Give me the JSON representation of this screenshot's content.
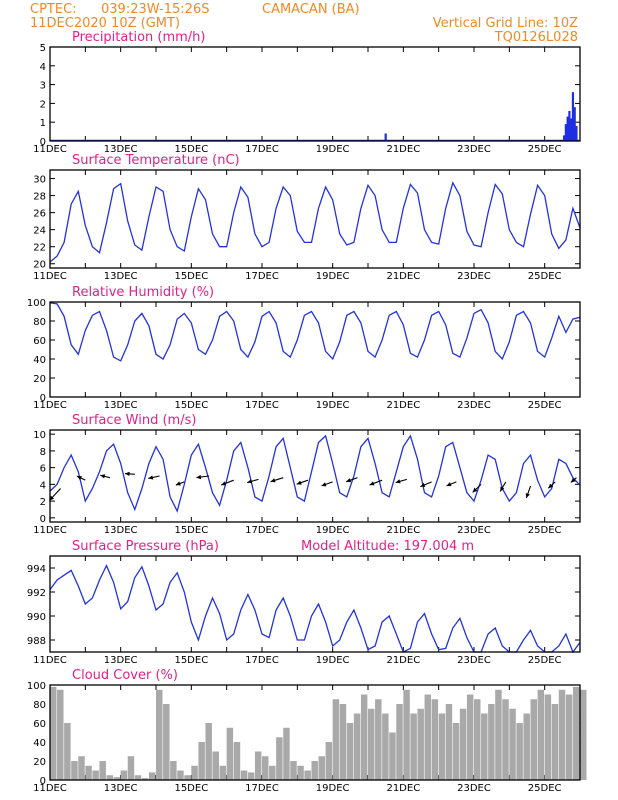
{
  "header": {
    "source": "CPTEC:",
    "coords": "039:23W-15:26S",
    "location": "CAMACAN (BA)",
    "init_time": "11DEC2020 10Z (GMT)",
    "grid_note": "Vertical Grid Line: 10Z",
    "code": "TQ0126L028",
    "model_altitude": "Model Altitude: 197.004 m"
  },
  "colors": {
    "header": "#f08a24",
    "panel_title": "#e0218a",
    "line": "#2233dd",
    "precip_bar": "#1f2fe0",
    "cloud_bar": "#a9a9a9"
  },
  "x_axis": {
    "start_day": 11,
    "end_day": 26,
    "labels": [
      "11DEC",
      "13DEC",
      "15DEC",
      "17DEC",
      "19DEC",
      "21DEC",
      "23DEC",
      "25DEC"
    ],
    "label_days": [
      11,
      13,
      15,
      17,
      19,
      21,
      23,
      25
    ]
  },
  "chart_data": [
    {
      "id": "precip",
      "type": "bar",
      "title": "Precipitation  (mm/h)",
      "ylim": [
        0,
        5
      ],
      "yticks": [
        0,
        1,
        2,
        3,
        4,
        5
      ],
      "x": [
        18.5,
        20.3,
        20.5,
        21.1,
        22.4,
        25.55,
        25.6,
        25.65,
        25.7,
        25.75,
        25.8,
        25.85,
        25.9
      ],
      "values": [
        0.05,
        0.03,
        0.4,
        0.05,
        0.02,
        0.3,
        0.9,
        1.3,
        1.6,
        1.2,
        2.6,
        1.8,
        0.8
      ]
    },
    {
      "id": "temp",
      "type": "line",
      "title": "Surface Temperature  (nC)",
      "ylim": [
        19.5,
        31
      ],
      "yticks": [
        20,
        22,
        24,
        26,
        28,
        30
      ],
      "x": [
        11.0,
        11.2,
        11.4,
        11.6,
        11.8,
        12.0,
        12.2,
        12.4,
        12.6,
        12.8,
        13.0,
        13.2,
        13.4,
        13.6,
        13.8,
        14.0,
        14.2,
        14.4,
        14.6,
        14.8,
        15.0,
        15.2,
        15.4,
        15.6,
        15.8,
        16.0,
        16.2,
        16.4,
        16.6,
        16.8,
        17.0,
        17.2,
        17.4,
        17.6,
        17.8,
        18.0,
        18.2,
        18.4,
        18.6,
        18.8,
        19.0,
        19.2,
        19.4,
        19.6,
        19.8,
        20.0,
        20.2,
        20.4,
        20.6,
        20.8,
        21.0,
        21.2,
        21.4,
        21.6,
        21.8,
        22.0,
        22.2,
        22.4,
        22.6,
        22.8,
        23.0,
        23.2,
        23.4,
        23.6,
        23.8,
        24.0,
        24.2,
        24.4,
        24.6,
        24.8,
        25.0,
        25.2,
        25.4,
        25.6,
        25.8,
        26.0
      ],
      "values": [
        20.2,
        20.9,
        22.5,
        27.0,
        28.5,
        24.5,
        22.0,
        21.3,
        24.8,
        28.8,
        29.4,
        25.0,
        22.2,
        21.6,
        25.5,
        29.0,
        28.5,
        24.0,
        22.0,
        21.5,
        25.5,
        28.8,
        27.5,
        23.5,
        22.0,
        22.0,
        26.0,
        29.0,
        27.8,
        23.5,
        22.0,
        22.5,
        26.5,
        29.0,
        28.0,
        23.8,
        22.5,
        22.5,
        26.5,
        29.0,
        27.5,
        23.5,
        22.2,
        22.5,
        26.5,
        29.2,
        28.0,
        24.0,
        22.5,
        22.5,
        26.5,
        29.3,
        28.3,
        24.0,
        22.5,
        22.3,
        26.5,
        29.5,
        28.0,
        23.8,
        22.2,
        22.0,
        26.0,
        29.3,
        28.2,
        24.0,
        22.5,
        22.0,
        25.8,
        29.2,
        28.0,
        23.5,
        21.8,
        22.8,
        26.5,
        24.2
      ]
    },
    {
      "id": "rh",
      "type": "line",
      "title": "Relative Humidity  (%)",
      "ylim": [
        0,
        100
      ],
      "yticks": [
        0,
        20,
        40,
        60,
        80,
        100
      ],
      "x": [
        11.0,
        11.2,
        11.4,
        11.6,
        11.8,
        12.0,
        12.2,
        12.4,
        12.6,
        12.8,
        13.0,
        13.2,
        13.4,
        13.6,
        13.8,
        14.0,
        14.2,
        14.4,
        14.6,
        14.8,
        15.0,
        15.2,
        15.4,
        15.6,
        15.8,
        16.0,
        16.2,
        16.4,
        16.6,
        16.8,
        17.0,
        17.2,
        17.4,
        17.6,
        17.8,
        18.0,
        18.2,
        18.4,
        18.6,
        18.8,
        19.0,
        19.2,
        19.4,
        19.6,
        19.8,
        20.0,
        20.2,
        20.4,
        20.6,
        20.8,
        21.0,
        21.2,
        21.4,
        21.6,
        21.8,
        22.0,
        22.2,
        22.4,
        22.6,
        22.8,
        23.0,
        23.2,
        23.4,
        23.6,
        23.8,
        24.0,
        24.2,
        24.4,
        24.6,
        24.8,
        25.0,
        25.2,
        25.4,
        25.6,
        25.8,
        26.0
      ],
      "values": [
        99,
        98,
        85,
        55,
        45,
        70,
        86,
        90,
        70,
        42,
        38,
        55,
        80,
        88,
        75,
        45,
        40,
        55,
        82,
        88,
        78,
        50,
        45,
        60,
        85,
        90,
        80,
        50,
        42,
        58,
        85,
        90,
        78,
        48,
        42,
        60,
        86,
        90,
        78,
        48,
        40,
        58,
        86,
        90,
        78,
        48,
        42,
        60,
        86,
        90,
        76,
        46,
        42,
        60,
        86,
        90,
        76,
        46,
        42,
        62,
        88,
        92,
        78,
        48,
        40,
        58,
        86,
        90,
        78,
        48,
        42,
        62,
        85,
        68,
        82,
        84
      ]
    },
    {
      "id": "wind",
      "type": "line",
      "title": "Surface Wind  (m/s)",
      "ylim": [
        -0.5,
        10.5
      ],
      "yticks": [
        0,
        2,
        4,
        6,
        8,
        10
      ],
      "x": [
        11.0,
        11.2,
        11.4,
        11.6,
        11.8,
        12.0,
        12.2,
        12.4,
        12.6,
        12.8,
        13.0,
        13.2,
        13.4,
        13.6,
        13.8,
        14.0,
        14.2,
        14.4,
        14.6,
        14.8,
        15.0,
        15.2,
        15.4,
        15.6,
        15.8,
        16.0,
        16.2,
        16.4,
        16.6,
        16.8,
        17.0,
        17.2,
        17.4,
        17.6,
        17.8,
        18.0,
        18.2,
        18.4,
        18.6,
        18.8,
        19.0,
        19.2,
        19.4,
        19.6,
        19.8,
        20.0,
        20.2,
        20.4,
        20.6,
        20.8,
        21.0,
        21.2,
        21.4,
        21.6,
        21.8,
        22.0,
        22.2,
        22.4,
        22.6,
        22.8,
        23.0,
        23.2,
        23.4,
        23.6,
        23.8,
        24.0,
        24.2,
        24.4,
        24.6,
        24.8,
        25.0,
        25.2,
        25.4,
        25.6,
        25.8,
        26.0
      ],
      "values": [
        3.2,
        4.0,
        6.0,
        7.5,
        5.5,
        2.0,
        3.5,
        5.5,
        8.0,
        8.8,
        6.5,
        3.0,
        1.0,
        3.5,
        6.5,
        8.5,
        7.0,
        2.5,
        0.8,
        4.0,
        7.5,
        8.8,
        6.0,
        3.0,
        1.5,
        4.5,
        8.0,
        9.0,
        6.0,
        2.5,
        2.0,
        5.0,
        8.5,
        9.5,
        6.0,
        2.5,
        2.0,
        5.5,
        9.0,
        9.8,
        6.5,
        3.0,
        2.5,
        5.0,
        8.5,
        9.5,
        6.5,
        3.0,
        2.5,
        5.5,
        8.5,
        9.8,
        7.0,
        3.0,
        2.5,
        5.0,
        8.5,
        9.0,
        6.0,
        3.0,
        2.0,
        4.5,
        7.5,
        7.0,
        3.5,
        2.0,
        3.0,
        6.5,
        7.5,
        4.5,
        2.5,
        3.5,
        7.0,
        6.5,
        4.8,
        3.9
      ],
      "vectors": {
        "x": [
          11.3,
          12.0,
          12.7,
          13.4,
          14.1,
          14.8,
          15.5,
          16.2,
          16.9,
          17.6,
          18.3,
          19.0,
          19.7,
          20.4,
          21.1,
          21.8,
          22.5,
          23.2,
          23.9,
          24.6,
          25.3,
          25.9
        ],
        "y": [
          3.5,
          4.5,
          4.8,
          5.2,
          5.0,
          4.3,
          5.0,
          4.5,
          4.6,
          4.8,
          4.5,
          4.3,
          4.8,
          4.5,
          4.6,
          4.3,
          4.3,
          4.0,
          4.3,
          3.8,
          4.3,
          4.8
        ],
        "dx": [
          -0.4,
          -0.3,
          -0.35,
          -0.35,
          -0.4,
          -0.3,
          -0.45,
          -0.45,
          -0.4,
          -0.45,
          -0.4,
          -0.4,
          -0.4,
          -0.45,
          -0.4,
          -0.4,
          -0.35,
          -0.3,
          -0.2,
          -0.15,
          -0.25,
          -0.2
        ],
        "dy": [
          -1.5,
          0.5,
          0.3,
          0.1,
          -0.3,
          -0.4,
          -0.2,
          -0.6,
          -0.4,
          -0.5,
          -0.5,
          -0.5,
          -0.5,
          -0.6,
          -0.4,
          -0.6,
          -0.5,
          -1.0,
          -1.2,
          -1.5,
          -0.8,
          -0.6
        ]
      }
    },
    {
      "id": "pres",
      "type": "line",
      "title": "Surface Pressure  (hPa)",
      "ylim": [
        987,
        995
      ],
      "yticks": [
        988,
        990,
        992,
        994
      ],
      "x": [
        11.0,
        11.2,
        11.4,
        11.6,
        11.8,
        12.0,
        12.2,
        12.4,
        12.6,
        12.8,
        13.0,
        13.2,
        13.4,
        13.6,
        13.8,
        14.0,
        14.2,
        14.4,
        14.6,
        14.8,
        15.0,
        15.2,
        15.4,
        15.6,
        15.8,
        16.0,
        16.2,
        16.4,
        16.6,
        16.8,
        17.0,
        17.2,
        17.4,
        17.6,
        17.8,
        18.0,
        18.2,
        18.4,
        18.6,
        18.8,
        19.0,
        19.2,
        19.4,
        19.6,
        19.8,
        20.0,
        20.2,
        20.4,
        20.6,
        20.8,
        21.0,
        21.2,
        21.4,
        21.6,
        21.8,
        22.0,
        22.2,
        22.4,
        22.6,
        22.8,
        23.0,
        23.2,
        23.4,
        23.6,
        23.8,
        24.0,
        24.2,
        24.4,
        24.6,
        24.8,
        25.0,
        25.2,
        25.4,
        25.6,
        25.8,
        26.0
      ],
      "values": [
        992.2,
        993.0,
        993.4,
        993.8,
        992.5,
        991.0,
        991.5,
        993.0,
        994.2,
        992.8,
        990.6,
        991.2,
        993.2,
        994.1,
        992.5,
        990.5,
        991.0,
        992.8,
        993.6,
        992.0,
        989.5,
        988.0,
        990.0,
        991.5,
        990.2,
        988.0,
        988.5,
        990.5,
        991.8,
        990.5,
        988.5,
        988.2,
        990.5,
        991.5,
        990.0,
        988.0,
        988.0,
        990.0,
        991.0,
        989.5,
        987.5,
        988.0,
        989.5,
        990.5,
        989.0,
        987.2,
        987.5,
        989.5,
        990.0,
        988.5,
        987.0,
        987.3,
        989.5,
        990.2,
        988.5,
        987.2,
        987.3,
        989.0,
        989.8,
        988.2,
        987.0,
        987.0,
        988.5,
        989.0,
        987.5,
        987.0,
        987.0,
        988.0,
        988.8,
        987.5,
        987.0,
        987.0,
        987.5,
        988.5,
        987.0,
        987.8
      ]
    },
    {
      "id": "cloud",
      "type": "area",
      "title": "Cloud Cover  (%)",
      "ylim": [
        0,
        100
      ],
      "yticks": [
        0,
        20,
        40,
        60,
        80,
        100
      ],
      "x": [
        11.0,
        11.2,
        11.4,
        11.6,
        11.8,
        12.0,
        12.2,
        12.4,
        12.6,
        12.8,
        13.0,
        13.2,
        13.4,
        13.6,
        13.8,
        14.0,
        14.2,
        14.4,
        14.6,
        14.8,
        15.0,
        15.2,
        15.4,
        15.6,
        15.8,
        16.0,
        16.2,
        16.4,
        16.6,
        16.8,
        17.0,
        17.2,
        17.4,
        17.6,
        17.8,
        18.0,
        18.2,
        18.4,
        18.6,
        18.8,
        19.0,
        19.2,
        19.4,
        19.6,
        19.8,
        20.0,
        20.2,
        20.4,
        20.6,
        20.8,
        21.0,
        21.2,
        21.4,
        21.6,
        21.8,
        22.0,
        22.2,
        22.4,
        22.6,
        22.8,
        23.0,
        23.2,
        23.4,
        23.6,
        23.8,
        24.0,
        24.2,
        24.4,
        24.6,
        24.8,
        25.0,
        25.2,
        25.4,
        25.6,
        25.8,
        26.0
      ],
      "values": [
        98,
        95,
        60,
        20,
        25,
        15,
        10,
        20,
        5,
        3,
        10,
        25,
        5,
        2,
        8,
        95,
        80,
        20,
        10,
        5,
        15,
        40,
        60,
        30,
        15,
        55,
        40,
        10,
        8,
        30,
        25,
        15,
        45,
        55,
        20,
        15,
        10,
        20,
        25,
        40,
        85,
        80,
        60,
        70,
        90,
        75,
        85,
        70,
        50,
        80,
        95,
        70,
        75,
        90,
        85,
        70,
        80,
        60,
        75,
        90,
        85,
        70,
        80,
        95,
        85,
        75,
        60,
        70,
        85,
        95,
        90,
        80,
        95,
        90,
        98,
        95
      ]
    }
  ]
}
